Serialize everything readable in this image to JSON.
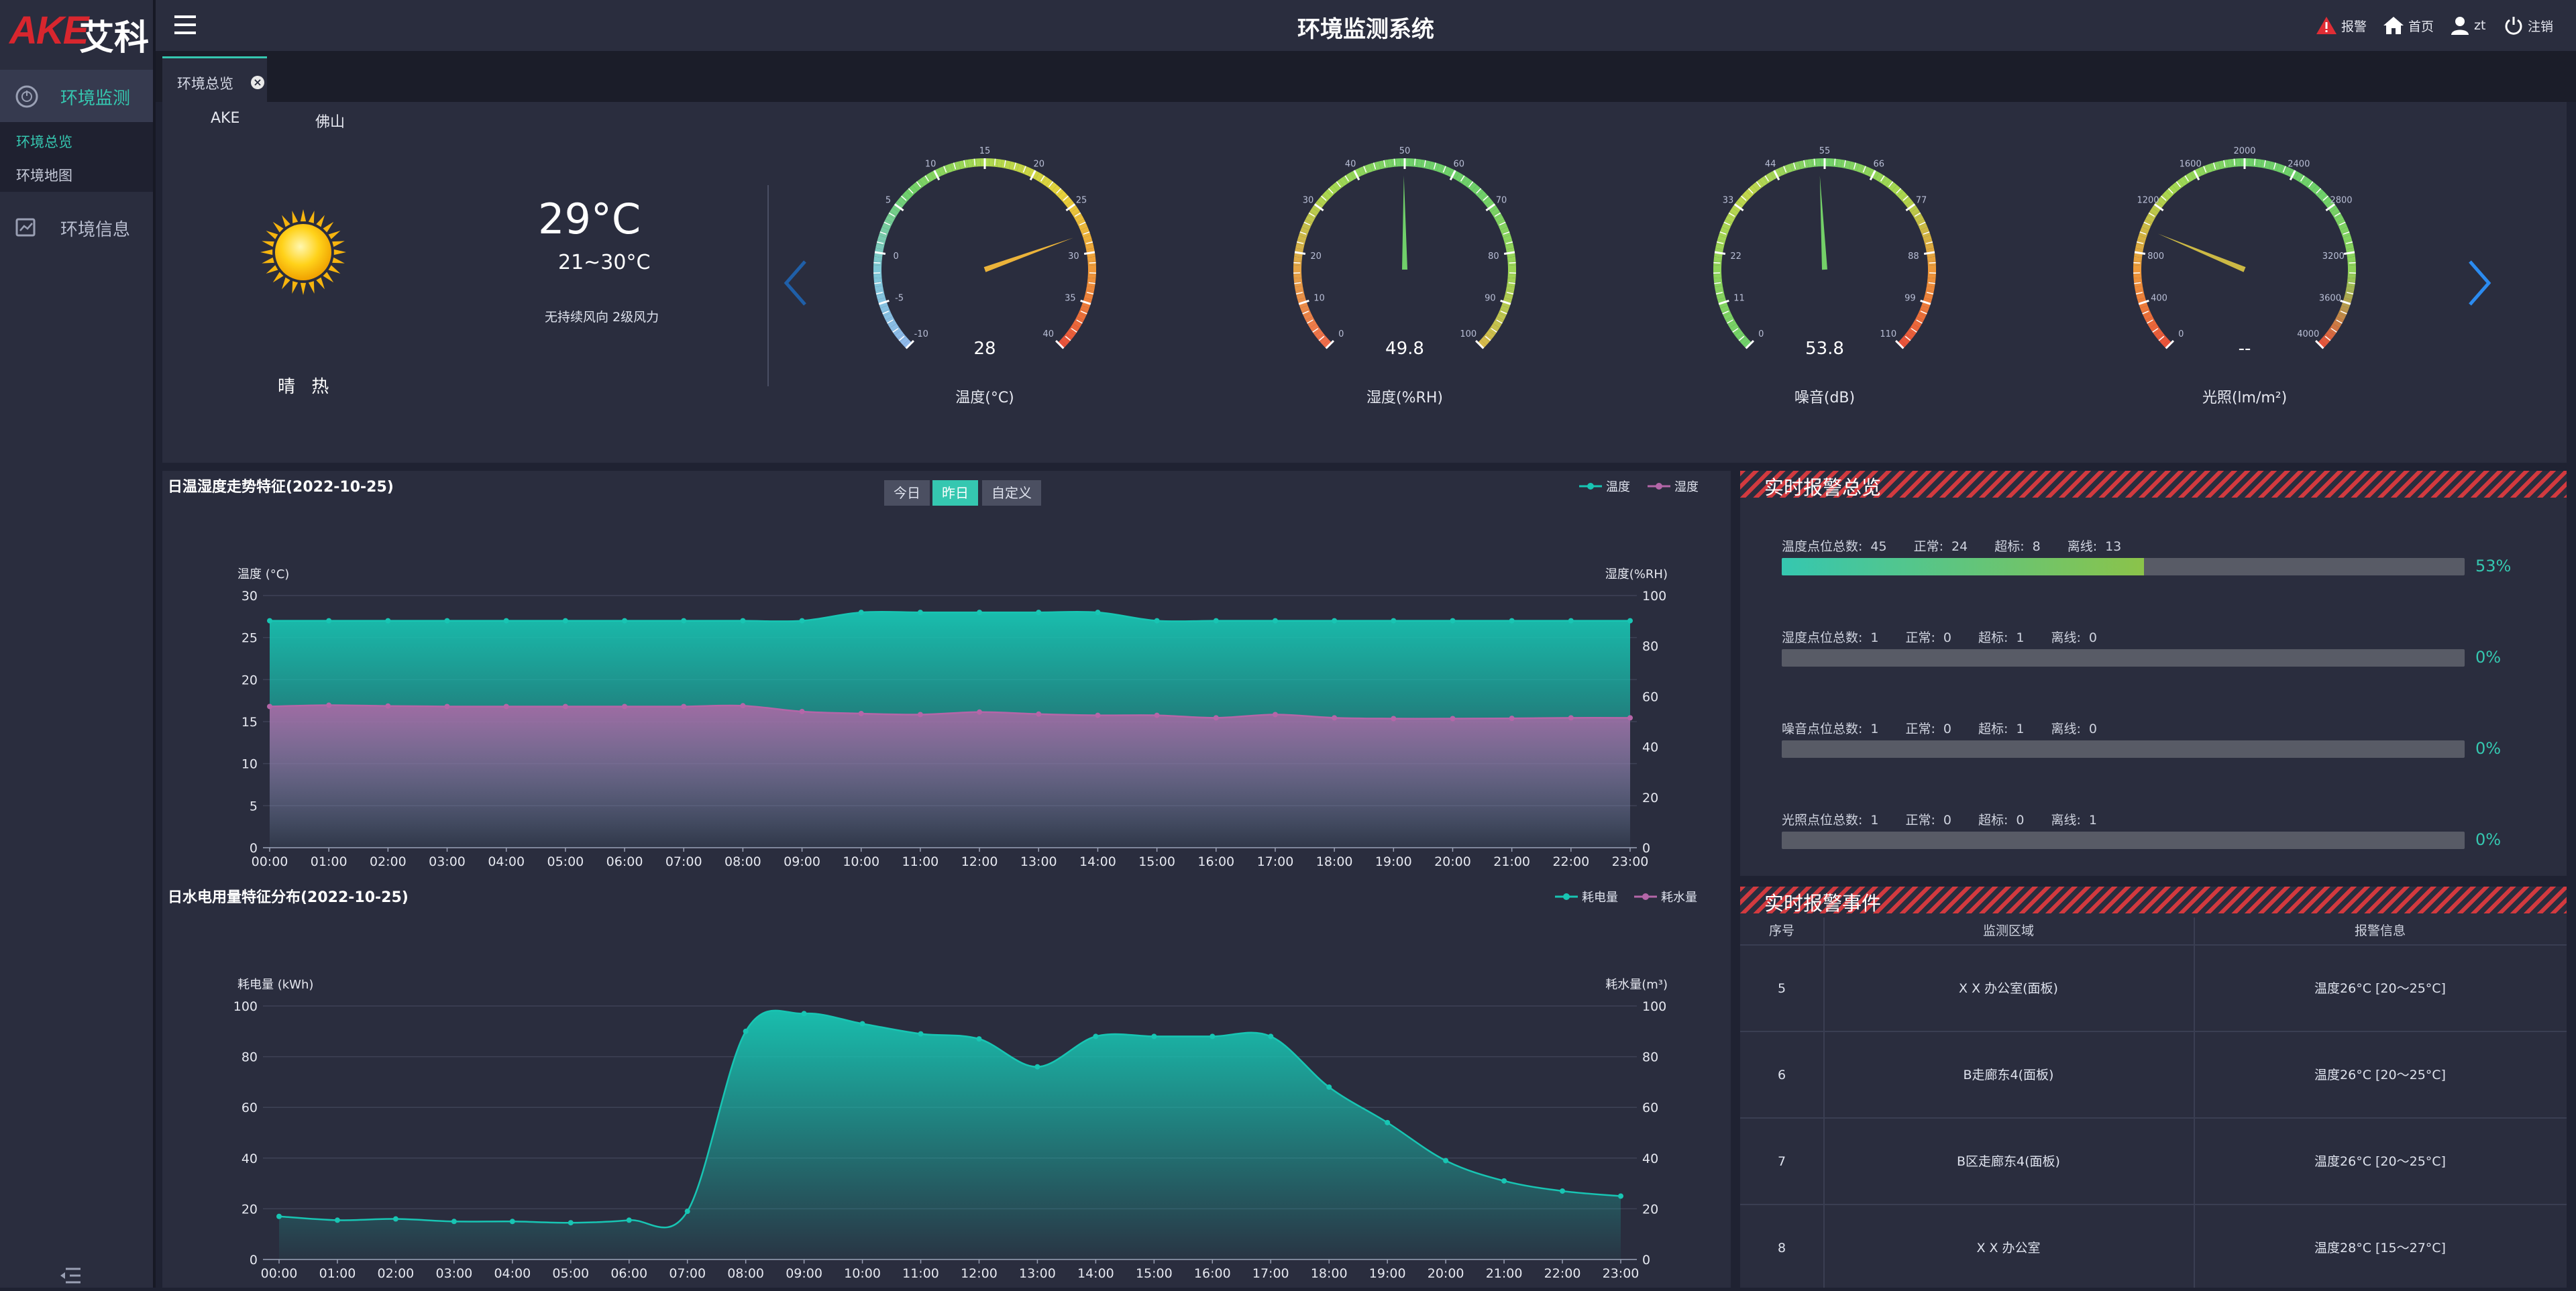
{
  "brand": {
    "logo_latin": "AKE",
    "logo_cn": "艾科"
  },
  "sidebar": {
    "menu1": "环境监测",
    "submenu": [
      "环境总览",
      "环境地图"
    ],
    "menu2": "环境信息"
  },
  "header": {
    "title": "环境监测系统",
    "alarm": "报警",
    "home": "首页",
    "user": "zt",
    "logout": "注销"
  },
  "tabs": [
    {
      "label": "环境总览"
    }
  ],
  "weather": {
    "org": "AKE",
    "city": "佛山",
    "temp": "29°C",
    "range": "21~30°C",
    "wind": "无持续风向 2级风力",
    "condition": "晴 热",
    "icon": "sun-icon"
  },
  "gauges": [
    {
      "label": "温度(°C)",
      "value_text": "28",
      "value": 28,
      "min": -10,
      "max": 40,
      "ticks": [
        "-10",
        "-5",
        "0",
        "5",
        "10",
        "15",
        "20",
        "25",
        "30",
        "35",
        "40"
      ]
    },
    {
      "label": "湿度(%RH)",
      "value_text": "49.8",
      "value": 49.8,
      "min": 0,
      "max": 100,
      "ticks": [
        "0",
        "10",
        "20",
        "30",
        "40",
        "50",
        "60",
        "70",
        "80",
        "90",
        "100"
      ]
    },
    {
      "label": "噪音(dB)",
      "value_text": "53.8",
      "value": 53.8,
      "min": 0,
      "max": 110,
      "ticks": [
        "0",
        "11",
        "22",
        "33",
        "44",
        "55",
        "66",
        "77",
        "88",
        "99",
        "110"
      ]
    },
    {
      "label": "光照(lm/m²)",
      "value_text": "--",
      "value": 1000,
      "min": 0,
      "max": 4000,
      "ticks": [
        "0",
        "400",
        "800",
        "1200",
        "1600",
        "2000",
        "2400",
        "2800",
        "3200",
        "3600",
        "4000"
      ]
    }
  ],
  "chart_buttons": [
    "今日",
    "昨日",
    "自定义"
  ],
  "chart_data": [
    {
      "type": "area",
      "title": "日温湿度走势特征(2022-10-25)",
      "ylabel": "温度 (°C)",
      "y2label": "湿度(%RH)",
      "ylim": [
        0,
        30
      ],
      "y2lim": [
        0,
        100
      ],
      "yticks": [
        "0",
        "5",
        "10",
        "15",
        "20",
        "25",
        "30"
      ],
      "y2ticks": [
        "0",
        "20",
        "40",
        "60",
        "80",
        "100"
      ],
      "x": [
        "00:00",
        "01:00",
        "02:00",
        "03:00",
        "04:00",
        "05:00",
        "06:00",
        "07:00",
        "08:00",
        "09:00",
        "10:00",
        "11:00",
        "12:00",
        "13:00",
        "14:00",
        "15:00",
        "16:00",
        "17:00",
        "18:00",
        "19:00",
        "20:00",
        "21:00",
        "22:00",
        "23:00"
      ],
      "series": [
        {
          "name": "温度",
          "axis": "left",
          "color": "#18c5b3",
          "values": [
            27,
            27,
            27,
            27,
            27,
            27,
            27,
            27,
            27,
            27,
            28,
            28,
            28,
            28,
            28,
            27,
            27,
            27,
            27,
            27,
            27,
            27,
            27,
            27
          ]
        },
        {
          "name": "湿度",
          "axis": "right",
          "color": "#b466a8",
          "values": [
            56,
            56.5,
            56.2,
            56,
            56,
            56,
            56,
            56,
            56.3,
            54,
            53.2,
            52.8,
            53.8,
            53,
            52.5,
            52.5,
            51.5,
            52.8,
            51.5,
            51.2,
            51.2,
            51.3,
            51.5,
            51.5
          ]
        }
      ]
    },
    {
      "type": "area",
      "title": "日水电用量特征分布(2022-10-25)",
      "ylabel": "耗电量 (kWh)",
      "y2label": "耗水量(m³)",
      "ylim": [
        0,
        100
      ],
      "y2lim": [
        0,
        100
      ],
      "yticks": [
        "0",
        "20",
        "40",
        "60",
        "80",
        "100"
      ],
      "y2ticks": [
        "0",
        "20",
        "40",
        "60",
        "80",
        "100"
      ],
      "x": [
        "00:00",
        "01:00",
        "02:00",
        "03:00",
        "04:00",
        "05:00",
        "06:00",
        "07:00",
        "08:00",
        "09:00",
        "10:00",
        "11:00",
        "12:00",
        "13:00",
        "14:00",
        "15:00",
        "16:00",
        "17:00",
        "18:00",
        "19:00",
        "20:00",
        "21:00",
        "22:00",
        "23:00"
      ],
      "series": [
        {
          "name": "耗电量",
          "axis": "left",
          "color": "#18c5b3",
          "values": [
            17,
            15.5,
            16,
            15,
            15,
            14.5,
            15.5,
            19,
            90,
            97,
            93,
            89,
            87,
            76,
            88,
            88,
            88,
            88,
            68,
            54,
            39,
            31,
            27,
            25
          ]
        },
        {
          "name": "耗水量",
          "axis": "right",
          "color": "#b466a8",
          "values": [
            0,
            0,
            0,
            0,
            0,
            0,
            0,
            0,
            0,
            0,
            0,
            0,
            0,
            0,
            0,
            0,
            0,
            0,
            0,
            0,
            0,
            0,
            0,
            0
          ]
        }
      ]
    }
  ],
  "alarm_overview": {
    "title": "实时报警总览",
    "rows": [
      {
        "label": "温度点位总数:",
        "total": "45",
        "normal_label": "正常:",
        "normal": "24",
        "over_label": "超标:",
        "over": "8",
        "offline_label": "离线:",
        "offline": "13",
        "pct_text": "53%",
        "pct": 0.53
      },
      {
        "label": "湿度点位总数:",
        "total": "1",
        "normal_label": "正常:",
        "normal": "0",
        "over_label": "超标:",
        "over": "1",
        "offline_label": "离线:",
        "offline": "0",
        "pct_text": "0%",
        "pct": 0
      },
      {
        "label": "噪音点位总数:",
        "total": "1",
        "normal_label": "正常:",
        "normal": "0",
        "over_label": "超标:",
        "over": "1",
        "offline_label": "离线:",
        "offline": "0",
        "pct_text": "0%",
        "pct": 0
      },
      {
        "label": "光照点位总数:",
        "total": "1",
        "normal_label": "正常:",
        "normal": "0",
        "over_label": "超标:",
        "over": "0",
        "offline_label": "离线:",
        "offline": "1",
        "pct_text": "0%",
        "pct": 0
      }
    ]
  },
  "alarm_events": {
    "title": "实时报警事件",
    "headers": [
      "序号",
      "监测区域",
      "报警信息"
    ],
    "rows": [
      {
        "no": "5",
        "area": "X X 办公室(面板)",
        "info": "温度26°C [20～25°C]"
      },
      {
        "no": "6",
        "area": "B走廊东4(面板)",
        "info": "温度26°C [20～25°C]"
      },
      {
        "no": "7",
        "area": "B区走廊东4(面板)",
        "info": "温度26°C [20～25°C]"
      },
      {
        "no": "8",
        "area": "X X 办公室",
        "info": "温度28°C [15～27°C]"
      }
    ]
  }
}
